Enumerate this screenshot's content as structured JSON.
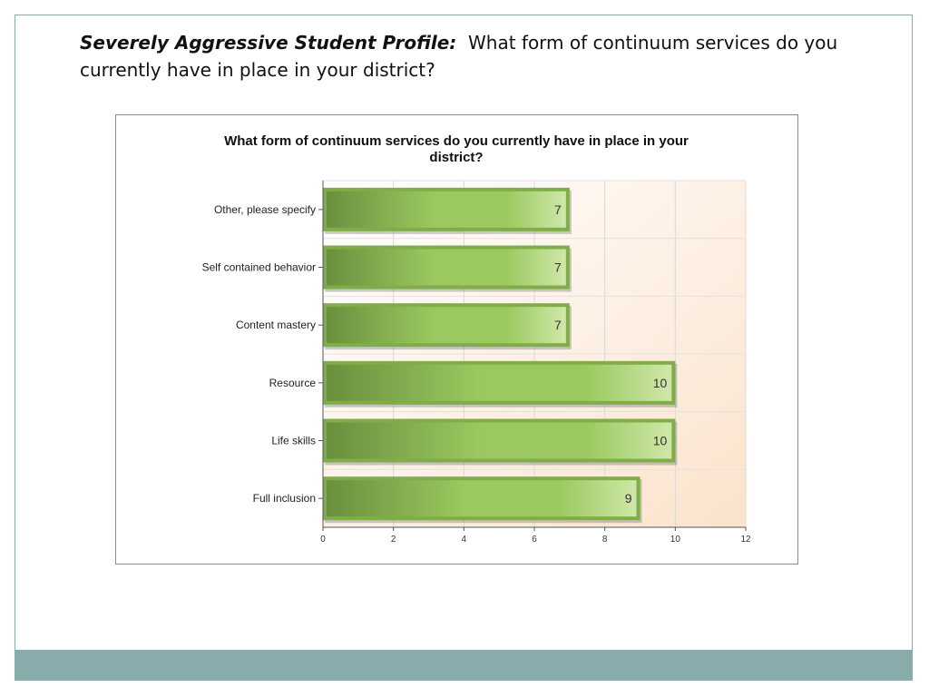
{
  "slide": {
    "heading_lead": "Severely Aggressive Student Profile:",
    "heading_rest": "What form of continuum services do you currently have in place in your district?"
  },
  "colors": {
    "bar_dark": "#6b8f3e",
    "bar_mid": "#9bc95f",
    "bar_light": "#cfe7a8",
    "bar_border": "#7fae49",
    "plot_bg_right": "#fbe3cc",
    "footer": "#88abab"
  },
  "chart_data": {
    "type": "bar",
    "orientation": "horizontal",
    "title": "What form of continuum services do you currently have in place in your district?",
    "categories": [
      "Other, please specify",
      "Self contained behavior",
      "Content mastery",
      "Resource",
      "Life skills",
      "Full inclusion"
    ],
    "values": [
      7,
      7,
      7,
      10,
      10,
      9
    ],
    "xlabel": "",
    "ylabel": "",
    "xlim": [
      0,
      12
    ],
    "xticks": [
      0,
      2,
      4,
      6,
      8,
      10,
      12
    ],
    "grid": true,
    "data_labels": true,
    "legend": "none"
  }
}
